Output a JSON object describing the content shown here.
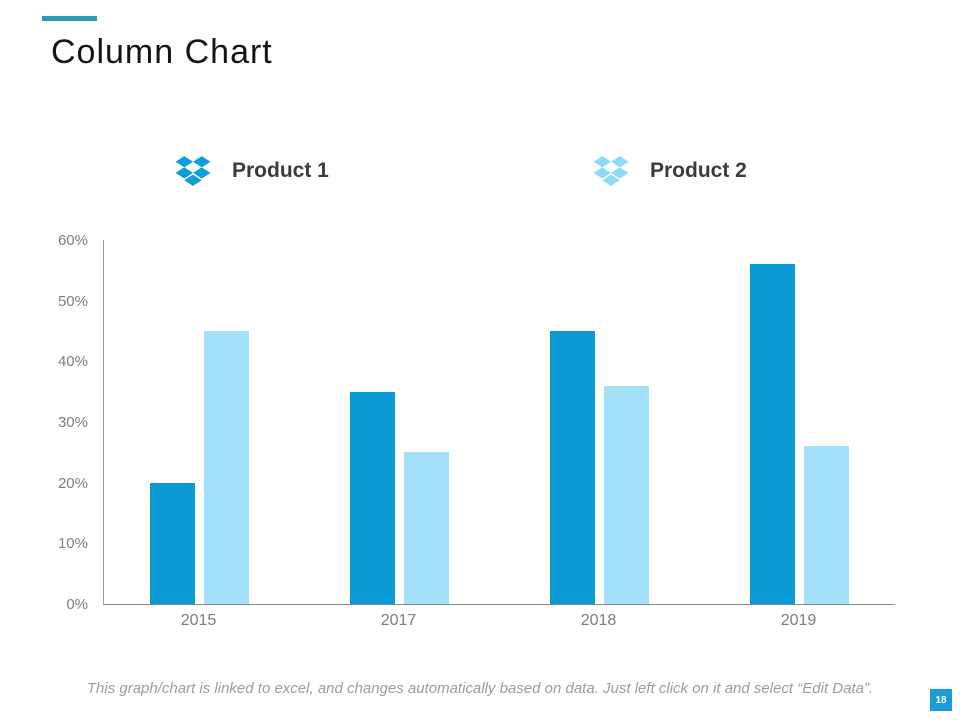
{
  "slide": {
    "title": "Column Chart",
    "page_number": "18",
    "footer_note": "This graph/chart is linked to excel,  and changes automatically based on data. Just left click on it and select “Edit Data”."
  },
  "legend": {
    "items": [
      {
        "label": "Product 1",
        "icon": "dropbox-icon",
        "color": "#0d9dd8"
      },
      {
        "label": "Product 2",
        "icon": "dropbox-icon",
        "color": "#8ed9f5"
      }
    ]
  },
  "chart_data": {
    "type": "bar",
    "title": "Column Chart",
    "categories": [
      "2015",
      "2017",
      "2018",
      "2019"
    ],
    "series": [
      {
        "name": "Product 1",
        "color": "#0a9ad3",
        "values": [
          20,
          35,
          45,
          56
        ]
      },
      {
        "name": "Product 2",
        "color": "#a3e0f9",
        "values": [
          45,
          25,
          36,
          26
        ]
      }
    ],
    "xlabel": "",
    "ylabel": "",
    "unit": "%",
    "y_ticks": [
      "0%",
      "10%",
      "20%",
      "30%",
      "40%",
      "50%",
      "60%"
    ],
    "ylim": [
      0,
      60
    ],
    "grid": false,
    "legend_position": "top"
  },
  "colors": {
    "accent_line": "#2d9cb3",
    "axis": "#8a8a8a",
    "tick_text": "#7d7d7d",
    "footer_text": "#9c9c9c",
    "page_badge_bg": "#1b9cd8",
    "page_badge_text": "#ffffff"
  }
}
